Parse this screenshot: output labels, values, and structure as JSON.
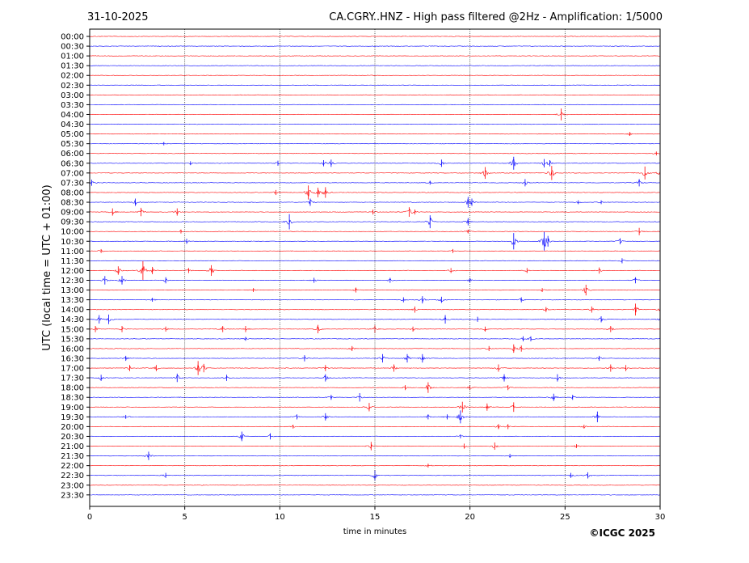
{
  "chart_data": {
    "type": "line",
    "date": "31-10-2025",
    "title": "CA.CGRY..HNZ - High pass filtered @2Hz - Amplification: 1/5000",
    "ylabel": "UTC (local time = UTC + 01:00)",
    "xlabel": "time in minutes",
    "copyright": "©ICGC 2025",
    "xlim": [
      0,
      30
    ],
    "x_ticks": [
      "0",
      "5",
      "10",
      "15",
      "20",
      "25",
      "30"
    ],
    "x_tick_values": [
      0,
      5,
      10,
      15,
      20,
      25,
      30
    ],
    "grid_x": [
      5,
      10,
      15,
      20,
      25
    ],
    "trace_colors": [
      "#ff0000",
      "#0000ff"
    ],
    "rows": [
      {
        "label": "00:00",
        "events": []
      },
      {
        "label": "00:30",
        "events": []
      },
      {
        "label": "01:00",
        "events": []
      },
      {
        "label": "01:30",
        "events": []
      },
      {
        "label": "02:00",
        "events": []
      },
      {
        "label": "02:30",
        "events": []
      },
      {
        "label": "03:00",
        "events": []
      },
      {
        "label": "03:30",
        "events": []
      },
      {
        "label": "04:00",
        "events": [
          [
            24.8,
            0.9
          ]
        ]
      },
      {
        "label": "04:30",
        "events": []
      },
      {
        "label": "05:00",
        "events": [
          [
            28.4,
            0.2
          ]
        ]
      },
      {
        "label": "05:30",
        "events": [
          [
            3.9,
            0.15
          ]
        ]
      },
      {
        "label": "06:00",
        "events": [
          [
            29.8,
            0.2
          ]
        ]
      },
      {
        "label": "06:30",
        "events": [
          [
            5.3,
            0.2
          ],
          [
            9.9,
            0.3
          ],
          [
            12.3,
            0.4
          ],
          [
            12.7,
            0.5
          ],
          [
            18.5,
            0.5
          ],
          [
            22.3,
            1.0
          ],
          [
            23.9,
            0.6
          ],
          [
            24.2,
            0.4
          ]
        ]
      },
      {
        "label": "07:00",
        "events": [
          [
            20.8,
            0.9
          ],
          [
            24.3,
            1.1
          ],
          [
            29.2,
            1.0
          ],
          [
            30.0,
            0.6
          ]
        ]
      },
      {
        "label": "07:30",
        "events": [
          [
            0.1,
            0.4
          ],
          [
            17.9,
            0.2
          ],
          [
            22.9,
            0.5
          ],
          [
            28.9,
            0.5
          ]
        ]
      },
      {
        "label": "08:00",
        "events": [
          [
            9.8,
            0.3
          ],
          [
            11.5,
            1.1
          ],
          [
            12.0,
            0.7
          ],
          [
            12.4,
            0.8
          ]
        ]
      },
      {
        "label": "08:30",
        "events": [
          [
            2.4,
            0.5
          ],
          [
            11.6,
            0.5
          ],
          [
            19.9,
            0.8
          ],
          [
            20.1,
            0.5
          ],
          [
            25.7,
            0.2
          ],
          [
            26.9,
            0.2
          ]
        ]
      },
      {
        "label": "09:00",
        "events": [
          [
            1.2,
            0.5
          ],
          [
            2.7,
            0.6
          ],
          [
            4.6,
            0.5
          ],
          [
            14.9,
            0.3
          ],
          [
            16.8,
            0.7
          ],
          [
            17.1,
            0.3
          ]
        ]
      },
      {
        "label": "09:30",
        "events": [
          [
            10.5,
            1.2
          ],
          [
            17.9,
            1.0
          ],
          [
            19.9,
            0.5
          ]
        ]
      },
      {
        "label": "10:00",
        "events": [
          [
            4.8,
            0.2
          ],
          [
            19.9,
            0.2
          ],
          [
            28.9,
            0.5
          ]
        ]
      },
      {
        "label": "10:30",
        "events": [
          [
            5.1,
            0.3
          ],
          [
            22.3,
            1.3
          ],
          [
            23.9,
            1.5
          ],
          [
            24.1,
            0.8
          ],
          [
            27.9,
            0.4
          ]
        ]
      },
      {
        "label": "11:00",
        "events": [
          [
            0.6,
            0.2
          ],
          [
            19.1,
            0.2
          ]
        ]
      },
      {
        "label": "11:30",
        "events": [
          [
            28.0,
            0.3
          ]
        ]
      },
      {
        "label": "12:00",
        "events": [
          [
            1.5,
            0.6
          ],
          [
            2.8,
            1.5
          ],
          [
            3.3,
            0.5
          ],
          [
            5.2,
            0.3
          ],
          [
            6.4,
            0.8
          ],
          [
            19.0,
            0.3
          ],
          [
            23.0,
            0.3
          ],
          [
            26.8,
            0.4
          ]
        ]
      },
      {
        "label": "12:30",
        "events": [
          [
            0.8,
            0.6
          ],
          [
            1.7,
            0.6
          ],
          [
            4.0,
            0.4
          ],
          [
            11.8,
            0.3
          ],
          [
            15.8,
            0.3
          ],
          [
            20.0,
            0.3
          ],
          [
            28.7,
            0.4
          ]
        ]
      },
      {
        "label": "13:00",
        "events": [
          [
            8.6,
            0.2
          ],
          [
            14.0,
            0.3
          ],
          [
            23.8,
            0.2
          ],
          [
            26.1,
            0.8
          ]
        ]
      },
      {
        "label": "13:30",
        "events": [
          [
            3.3,
            0.2
          ],
          [
            16.5,
            0.3
          ],
          [
            17.5,
            0.5
          ],
          [
            18.5,
            0.4
          ],
          [
            22.7,
            0.3
          ]
        ]
      },
      {
        "label": "14:00",
        "events": [
          [
            17.1,
            0.4
          ],
          [
            24.0,
            0.3
          ],
          [
            26.4,
            0.4
          ],
          [
            28.7,
            0.9
          ],
          [
            30.0,
            0.4
          ]
        ]
      },
      {
        "label": "14:30",
        "events": [
          [
            0.5,
            0.6
          ],
          [
            1.0,
            0.7
          ],
          [
            18.7,
            0.6
          ],
          [
            20.4,
            0.3
          ],
          [
            26.9,
            0.4
          ],
          [
            30.0,
            0.3
          ]
        ]
      },
      {
        "label": "15:00",
        "events": [
          [
            0.3,
            0.4
          ],
          [
            1.7,
            0.4
          ],
          [
            4.0,
            0.3
          ],
          [
            7.0,
            0.4
          ],
          [
            8.2,
            0.4
          ],
          [
            12.0,
            0.6
          ],
          [
            15.0,
            0.5
          ],
          [
            17.0,
            0.3
          ],
          [
            20.8,
            0.3
          ],
          [
            27.4,
            0.4
          ]
        ]
      },
      {
        "label": "15:30",
        "events": [
          [
            8.2,
            0.2
          ],
          [
            22.8,
            0.3
          ],
          [
            23.2,
            0.3
          ]
        ]
      },
      {
        "label": "16:00",
        "events": [
          [
            13.8,
            0.3
          ],
          [
            21.0,
            0.3
          ],
          [
            22.3,
            0.6
          ],
          [
            22.7,
            0.4
          ]
        ]
      },
      {
        "label": "16:30",
        "events": [
          [
            1.9,
            0.3
          ],
          [
            11.3,
            0.4
          ],
          [
            15.4,
            0.6
          ],
          [
            16.7,
            0.6
          ],
          [
            17.5,
            0.6
          ],
          [
            26.8,
            0.3
          ]
        ]
      },
      {
        "label": "17:00",
        "events": [
          [
            2.1,
            0.4
          ],
          [
            3.5,
            0.4
          ],
          [
            5.7,
            1.1
          ],
          [
            6.0,
            0.6
          ],
          [
            12.4,
            0.4
          ],
          [
            16.0,
            0.5
          ],
          [
            21.5,
            0.5
          ],
          [
            27.4,
            0.5
          ],
          [
            28.2,
            0.4
          ]
        ]
      },
      {
        "label": "17:30",
        "events": [
          [
            0.6,
            0.4
          ],
          [
            4.6,
            0.6
          ],
          [
            7.2,
            0.4
          ],
          [
            12.4,
            0.5
          ],
          [
            21.8,
            0.5
          ],
          [
            24.6,
            0.5
          ]
        ]
      },
      {
        "label": "18:00",
        "events": [
          [
            16.6,
            0.3
          ],
          [
            17.8,
            0.8
          ],
          [
            20.0,
            0.3
          ],
          [
            22.0,
            0.3
          ]
        ]
      },
      {
        "label": "18:30",
        "events": [
          [
            12.7,
            0.3
          ],
          [
            14.2,
            0.6
          ],
          [
            24.4,
            0.5
          ],
          [
            25.4,
            0.3
          ]
        ]
      },
      {
        "label": "19:00",
        "events": [
          [
            14.7,
            0.6
          ],
          [
            19.6,
            0.8
          ],
          [
            20.9,
            0.5
          ],
          [
            22.3,
            0.7
          ]
        ]
      },
      {
        "label": "19:30",
        "events": [
          [
            1.9,
            0.2
          ],
          [
            10.9,
            0.3
          ],
          [
            12.4,
            0.5
          ],
          [
            17.8,
            0.3
          ],
          [
            18.8,
            0.3
          ],
          [
            19.5,
            1.0
          ],
          [
            26.7,
            0.8
          ]
        ]
      },
      {
        "label": "20:00",
        "events": [
          [
            10.7,
            0.2
          ],
          [
            21.5,
            0.3
          ],
          [
            22.0,
            0.3
          ],
          [
            26.0,
            0.2
          ]
        ]
      },
      {
        "label": "20:30",
        "events": [
          [
            8.0,
            0.7
          ],
          [
            9.5,
            0.4
          ],
          [
            19.5,
            0.2
          ]
        ]
      },
      {
        "label": "21:00",
        "events": [
          [
            14.8,
            0.6
          ],
          [
            19.7,
            0.3
          ],
          [
            21.3,
            0.5
          ],
          [
            25.6,
            0.2
          ]
        ]
      },
      {
        "label": "21:30",
        "events": [
          [
            3.1,
            0.6
          ],
          [
            22.1,
            0.2
          ]
        ]
      },
      {
        "label": "22:00",
        "events": [
          [
            17.8,
            0.2
          ]
        ]
      },
      {
        "label": "22:30",
        "events": [
          [
            4.0,
            0.3
          ],
          [
            15.0,
            0.8
          ],
          [
            25.3,
            0.3
          ],
          [
            26.2,
            0.4
          ]
        ]
      },
      {
        "label": "23:00",
        "events": []
      },
      {
        "label": "23:30",
        "events": []
      }
    ]
  }
}
